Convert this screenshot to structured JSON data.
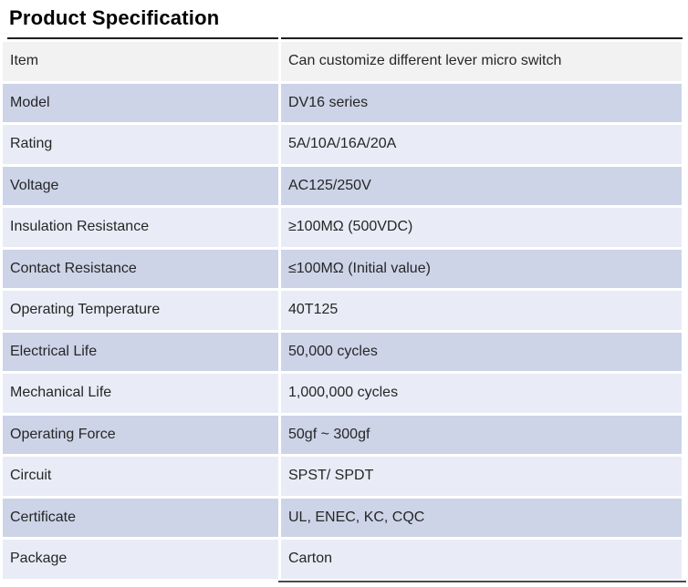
{
  "title": "Product Specification",
  "colors": {
    "row_gray": "#f2f2f2",
    "row_dark": "#cdd4e8",
    "row_light": "#e9ecf6",
    "border_top": "#1f1f1f",
    "border_bottom": "#4d4d4d",
    "text": "#262626"
  },
  "table": {
    "rows": [
      {
        "label": "Item",
        "value": "Can customize different lever micro switch"
      },
      {
        "label": "Model",
        "value": "DV16 series"
      },
      {
        "label": "Rating",
        "value": "5A/10A/16A/20A"
      },
      {
        "label": "Voltage",
        "value": "AC125/250V"
      },
      {
        "label": "Insulation Resistance",
        "value": "≥100MΩ (500VDC)"
      },
      {
        "label": "Contact Resistance",
        "value": "≤100MΩ (Initial value)"
      },
      {
        "label": "Operating Temperature",
        "value": "40T125"
      },
      {
        "label": "Electrical Life",
        "value": "50,000 cycles"
      },
      {
        "label": "Mechanical Life",
        "value": "1,000,000 cycles"
      },
      {
        "label": "Operating Force",
        "value": "50gf ~ 300gf"
      },
      {
        "label": "Circuit",
        "value": "SPST/ SPDT"
      },
      {
        "label": "Certificate",
        "value": "UL, ENEC, KC, CQC"
      },
      {
        "label": "Package",
        "value": "Carton"
      }
    ]
  }
}
